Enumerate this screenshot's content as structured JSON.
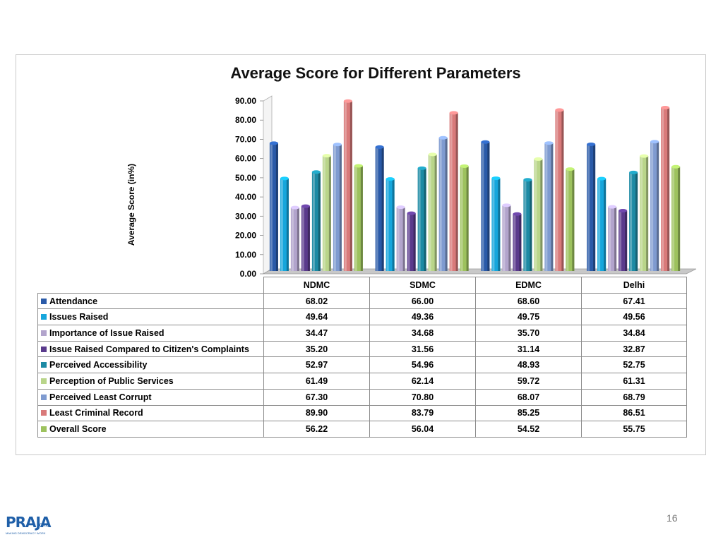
{
  "chart_data": {
    "type": "bar",
    "title": "Average Score for Different Parameters",
    "ylabel": "Average Score (in%)",
    "xlabel": "",
    "ylim": [
      0,
      90
    ],
    "y_ticks": [
      "0.00",
      "10.00",
      "20.00",
      "30.00",
      "40.00",
      "50.00",
      "60.00",
      "70.00",
      "80.00",
      "90.00"
    ],
    "categories": [
      "NDMC",
      "SDMC",
      "EDMC",
      "Delhi"
    ],
    "grid": false,
    "legend": "table-below",
    "series": [
      {
        "name": "Attendance",
        "color": "#2a5aa8",
        "values": [
          68.02,
          66.0,
          68.6,
          67.41
        ],
        "labels": [
          "68.02",
          "66.00",
          "68.60",
          "67.41"
        ]
      },
      {
        "name": "Issues Raised",
        "color": "#16a6dc",
        "values": [
          49.64,
          49.36,
          49.75,
          49.56
        ],
        "labels": [
          "49.64",
          "49.36",
          "49.75",
          "49.56"
        ]
      },
      {
        "name": "Importance of Issue Raised",
        "color": "#b2a4cc",
        "values": [
          34.47,
          34.68,
          35.7,
          34.84
        ],
        "labels": [
          "34.47",
          "34.68",
          "35.70",
          "34.84"
        ]
      },
      {
        "name": "Issue Raised Compared to Citizen's Complaints",
        "color": "#5a3a8c",
        "values": [
          35.2,
          31.56,
          31.14,
          32.87
        ],
        "labels": [
          "35.20",
          "31.56",
          "31.14",
          "32.87"
        ]
      },
      {
        "name": "Perceived Accessibility",
        "color": "#1c8aa4",
        "values": [
          52.97,
          54.96,
          48.93,
          52.75
        ],
        "labels": [
          "52.97",
          "54.96",
          "48.93",
          "52.75"
        ]
      },
      {
        "name": "Perception of Public Services",
        "color": "#b9d58a",
        "values": [
          61.49,
          62.14,
          59.72,
          61.31
        ],
        "labels": [
          "61.49",
          "62.14",
          "59.72",
          "61.31"
        ]
      },
      {
        "name": "Perceived Least Corrupt",
        "color": "#7f9bd0",
        "values": [
          67.3,
          70.8,
          68.07,
          68.79
        ],
        "labels": [
          "67.30",
          "70.80",
          "68.07",
          "68.79"
        ]
      },
      {
        "name": "Least Criminal Record",
        "color": "#d97a7a",
        "values": [
          89.9,
          83.79,
          85.25,
          86.51
        ],
        "labels": [
          "89.90",
          "83.79",
          "85.25",
          "86.51"
        ]
      },
      {
        "name": "Overall Score",
        "color": "#9dc25e",
        "values": [
          56.22,
          56.04,
          54.52,
          55.75
        ],
        "labels": [
          "56.22",
          "56.04",
          "54.52",
          "55.75"
        ]
      }
    ]
  },
  "page_number": "16",
  "logo": {
    "main": "PRAJA",
    "org": ".ORG",
    "tagline": "MAKING DEMOCRACY WORK"
  }
}
